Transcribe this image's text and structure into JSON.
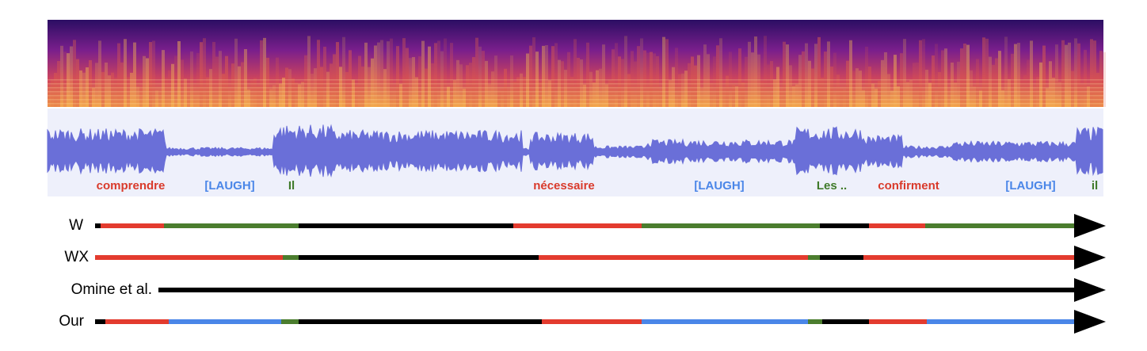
{
  "words": [
    "comprendre",
    "[LAUGH]",
    "Il",
    "nécessaire",
    "[LAUGH]",
    "Les ..",
    "confirment",
    "[LAUGH]",
    "il"
  ],
  "rows": [
    "W",
    "WX",
    "Omine et al.",
    "Our"
  ]
}
